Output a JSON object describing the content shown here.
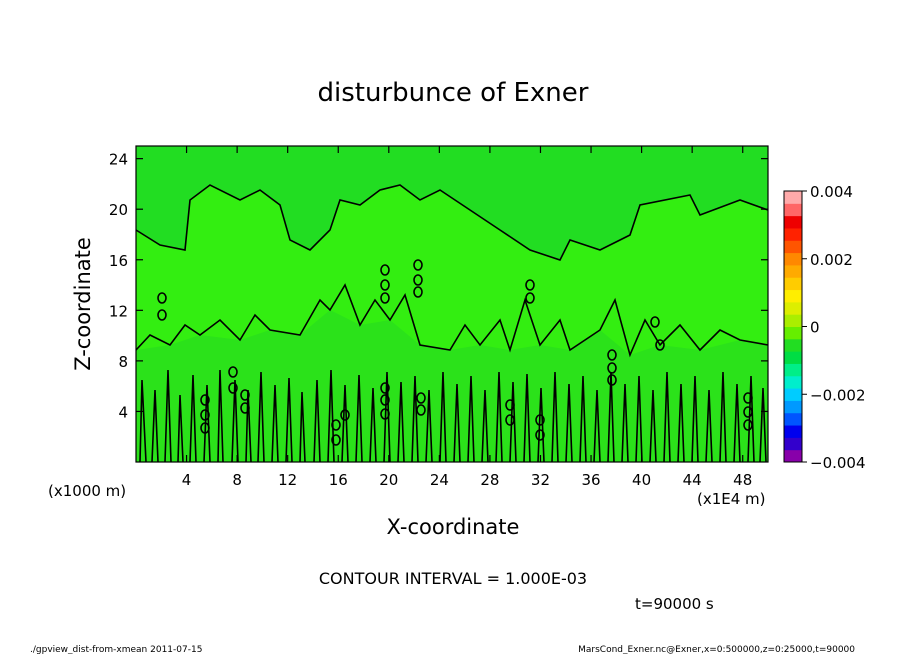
{
  "chart_data": {
    "type": "heatmap",
    "title": "disturbunce of Exner",
    "xlabel": "X-coordinate",
    "ylabel": "Z-coordinate",
    "x_unit": "(x1E4 m)",
    "y_unit": "(x1000 m)",
    "x_ticks": [
      "4",
      "8",
      "12",
      "16",
      "20",
      "24",
      "28",
      "32",
      "36",
      "40",
      "44",
      "48"
    ],
    "y_ticks": [
      "4",
      "8",
      "12",
      "16",
      "20",
      "24"
    ],
    "xlim": [
      0,
      50
    ],
    "ylim": [
      0,
      25
    ],
    "colorbar": {
      "ticks": [
        "0.004",
        "0.002",
        "0",
        "−0.002",
        "−0.004"
      ],
      "range": [
        -0.004,
        0.004
      ],
      "colors": [
        "#8800aa",
        "#3300cc",
        "#0000ee",
        "#0055ff",
        "#0099ff",
        "#00ccff",
        "#00eecc",
        "#00ee88",
        "#00dd44",
        "#22dd22",
        "#66ee00",
        "#aaee00",
        "#ddee00",
        "#ffee00",
        "#ffcc00",
        "#ffaa00",
        "#ff8800",
        "#ff5500",
        "#ff2200",
        "#ee0000",
        "#ff6666",
        "#ffaaaa"
      ]
    },
    "contour_interval_text": "CONTOUR INTERVAL = 1.000E-03",
    "field_fill_color": "#33ee11",
    "region_fill_color": "#22dd22"
  },
  "time_text": "t=90000 s",
  "footer_left": "./gpview_dist-from-xmean  2011-07-15",
  "footer_right": "MarsCond_Exner.nc@Exner,x=0:500000,z=0:25000,t=90000"
}
